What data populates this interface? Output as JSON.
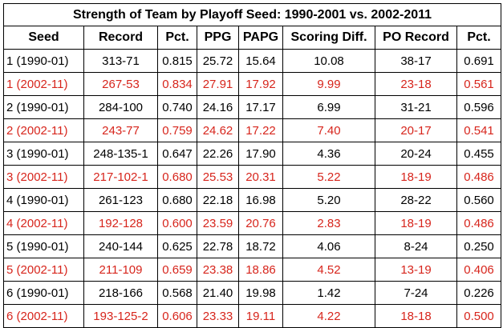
{
  "title": "Strength of Team by Playoff Seed: 1990-2001 vs. 2002-2011",
  "columns": [
    "Seed",
    "Record",
    "Pct.",
    "PPG",
    "PAPG",
    "Scoring Diff.",
    "PO Record",
    "Pct."
  ],
  "colors": {
    "era_2002": "#d7251c",
    "era_1990": "#000000"
  },
  "rows": [
    {
      "seed": "1 (1990-01)",
      "record": "313-71",
      "pct": "0.815",
      "ppg": "25.72",
      "papg": "15.64",
      "diff": "10.08",
      "po_record": "38-17",
      "po_pct": "0.691",
      "era": "1990"
    },
    {
      "seed": "1 (2002-11)",
      "record": "267-53",
      "pct": "0.834",
      "ppg": "27.91",
      "papg": "17.92",
      "diff": "9.99",
      "po_record": "23-18",
      "po_pct": "0.561",
      "era": "2002"
    },
    {
      "seed": "2 (1990-01)",
      "record": "284-100",
      "pct": "0.740",
      "ppg": "24.16",
      "papg": "17.17",
      "diff": "6.99",
      "po_record": "31-21",
      "po_pct": "0.596",
      "era": "1990"
    },
    {
      "seed": "2 (2002-11)",
      "record": "243-77",
      "pct": "0.759",
      "ppg": "24.62",
      "papg": "17.22",
      "diff": "7.40",
      "po_record": "20-17",
      "po_pct": "0.541",
      "era": "2002"
    },
    {
      "seed": "3 (1990-01)",
      "record": "248-135-1",
      "pct": "0.647",
      "ppg": "22.26",
      "papg": "17.90",
      "diff": "4.36",
      "po_record": "20-24",
      "po_pct": "0.455",
      "era": "1990"
    },
    {
      "seed": "3 (2002-11)",
      "record": "217-102-1",
      "pct": "0.680",
      "ppg": "25.53",
      "papg": "20.31",
      "diff": "5.22",
      "po_record": "18-19",
      "po_pct": "0.486",
      "era": "2002"
    },
    {
      "seed": "4 (1990-01)",
      "record": "261-123",
      "pct": "0.680",
      "ppg": "22.18",
      "papg": "16.98",
      "diff": "5.20",
      "po_record": "28-22",
      "po_pct": "0.560",
      "era": "1990"
    },
    {
      "seed": "4 (2002-11)",
      "record": "192-128",
      "pct": "0.600",
      "ppg": "23.59",
      "papg": "20.76",
      "diff": "2.83",
      "po_record": "18-19",
      "po_pct": "0.486",
      "era": "2002"
    },
    {
      "seed": "5 (1990-01)",
      "record": "240-144",
      "pct": "0.625",
      "ppg": "22.78",
      "papg": "18.72",
      "diff": "4.06",
      "po_record": "8-24",
      "po_pct": "0.250",
      "era": "1990"
    },
    {
      "seed": "5 (2002-11)",
      "record": "211-109",
      "pct": "0.659",
      "ppg": "23.38",
      "papg": "18.86",
      "diff": "4.52",
      "po_record": "13-19",
      "po_pct": "0.406",
      "era": "2002"
    },
    {
      "seed": "6 (1990-01)",
      "record": "218-166",
      "pct": "0.568",
      "ppg": "21.40",
      "papg": "19.98",
      "diff": "1.42",
      "po_record": "7-24",
      "po_pct": "0.226",
      "era": "1990"
    },
    {
      "seed": "6 (2002-11)",
      "record": "193-125-2",
      "pct": "0.606",
      "ppg": "23.33",
      "papg": "19.11",
      "diff": "4.22",
      "po_record": "18-18",
      "po_pct": "0.500",
      "era": "2002"
    }
  ]
}
